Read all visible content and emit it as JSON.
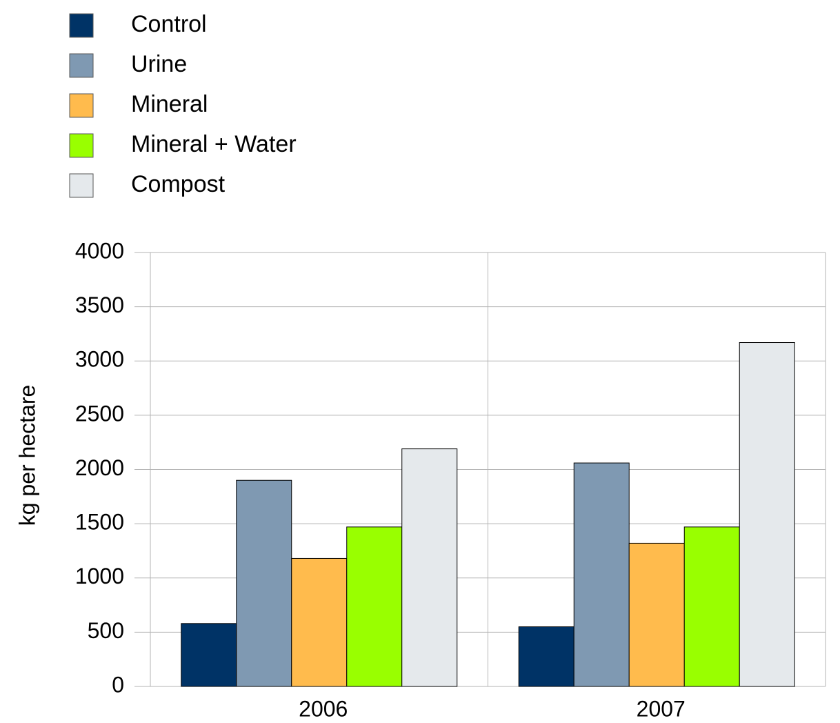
{
  "chart_data": {
    "type": "bar",
    "y_label": "kg per hectare",
    "categories": [
      "2006",
      "2007"
    ],
    "series": [
      {
        "name": "Control",
        "color": "#003366",
        "values": [
          580,
          550
        ]
      },
      {
        "name": "Urine",
        "color": "#7f99b2",
        "values": [
          1900,
          2060
        ]
      },
      {
        "name": "Mineral",
        "color": "#ffbb4d",
        "values": [
          1180,
          1320
        ]
      },
      {
        "name": "Mineral + Water",
        "color": "#99ff00",
        "values": [
          1470,
          1470
        ]
      },
      {
        "name": "Compost",
        "color": "#e5e9ec",
        "values": [
          2190,
          3170
        ]
      }
    ],
    "ylim": [
      0,
      4000
    ],
    "yticks": [
      0,
      500,
      1000,
      1500,
      2000,
      2500,
      3000,
      3500,
      4000
    ],
    "grid": true,
    "legend": "top-left"
  }
}
